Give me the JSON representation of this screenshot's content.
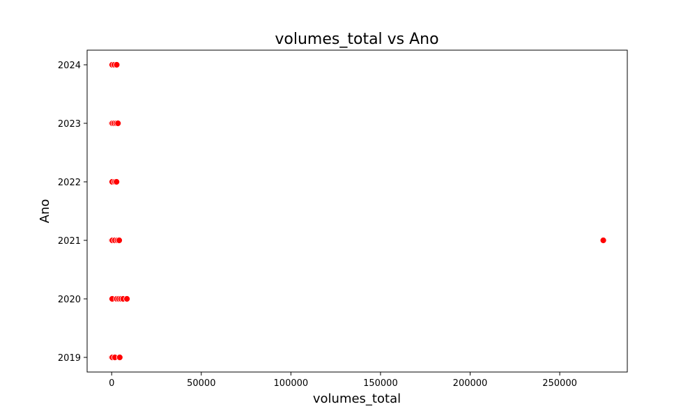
{
  "chart_data": {
    "type": "scatter",
    "title": "volumes_total vs Ano",
    "xlabel": "volumes_total",
    "ylabel": "Ano",
    "xlim": [
      -13700,
      287700
    ],
    "ylim": [
      2018.75,
      2024.25
    ],
    "xticks": [
      0,
      50000,
      100000,
      150000,
      200000,
      250000
    ],
    "xtick_labels": [
      "0",
      "50000",
      "100000",
      "150000",
      "200000",
      "250000"
    ],
    "yticks": [
      2019,
      2020,
      2021,
      2022,
      2023,
      2024
    ],
    "ytick_labels": [
      "2019",
      "2020",
      "2021",
      "2022",
      "2023",
      "2024"
    ],
    "grid": false,
    "marker_color": "#ff0000",
    "marker_edge_color": "#ffffff",
    "points": [
      {
        "x": 0,
        "y": 2024
      },
      {
        "x": 300,
        "y": 2024
      },
      {
        "x": 1500,
        "y": 2024
      },
      {
        "x": 2800,
        "y": 2024
      },
      {
        "x": 0,
        "y": 2023
      },
      {
        "x": 400,
        "y": 2023
      },
      {
        "x": 1400,
        "y": 2023
      },
      {
        "x": 2500,
        "y": 2023
      },
      {
        "x": 3500,
        "y": 2023
      },
      {
        "x": 0,
        "y": 2022
      },
      {
        "x": 300,
        "y": 2022
      },
      {
        "x": 1800,
        "y": 2022
      },
      {
        "x": 2700,
        "y": 2022
      },
      {
        "x": 0,
        "y": 2021
      },
      {
        "x": 400,
        "y": 2021
      },
      {
        "x": 1800,
        "y": 2021
      },
      {
        "x": 3200,
        "y": 2021
      },
      {
        "x": 4200,
        "y": 2021
      },
      {
        "x": 274300,
        "y": 2021
      },
      {
        "x": 0,
        "y": 2020
      },
      {
        "x": 300,
        "y": 2020
      },
      {
        "x": 2800,
        "y": 2020
      },
      {
        "x": 4000,
        "y": 2020
      },
      {
        "x": 5200,
        "y": 2020
      },
      {
        "x": 6400,
        "y": 2020
      },
      {
        "x": 8500,
        "y": 2020
      },
      {
        "x": 0,
        "y": 2019
      },
      {
        "x": 400,
        "y": 2019
      },
      {
        "x": 1800,
        "y": 2019
      },
      {
        "x": 4500,
        "y": 2019
      }
    ]
  }
}
